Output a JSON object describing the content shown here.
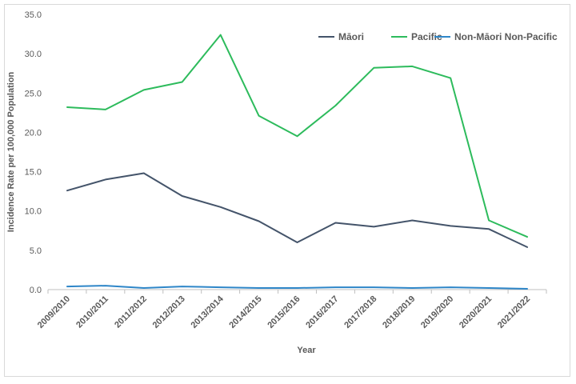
{
  "chart_data": {
    "type": "line",
    "title": "",
    "xlabel": "Year",
    "ylabel": "Incidence Rate per 100,000 Population",
    "ylim": [
      0,
      35
    ],
    "yticks": [
      "0.0",
      "5.0",
      "10.0",
      "15.0",
      "20.0",
      "25.0",
      "30.0",
      "35.0"
    ],
    "grid": false,
    "legend_position": "top-right",
    "categories": [
      "2009/2010",
      "2010/2011",
      "2011/2012",
      "2012/2013",
      "2013/2014",
      "2014/2015",
      "2015/2016",
      "2016/2017",
      "2017/2018",
      "2018/2019",
      "2019/2020",
      "2020/2021",
      "2021/2022"
    ],
    "series": [
      {
        "name": "Māori",
        "color": "#44546a",
        "values": [
          12.6,
          14.0,
          14.8,
          11.9,
          10.5,
          8.7,
          6.0,
          8.5,
          8.0,
          8.8,
          8.1,
          7.7,
          5.4
        ]
      },
      {
        "name": "Pacific",
        "color": "#2dbb5c",
        "values": [
          23.2,
          22.9,
          25.4,
          26.4,
          32.4,
          22.1,
          19.5,
          23.4,
          28.2,
          28.4,
          26.9,
          8.8,
          6.7
        ]
      },
      {
        "name": "Non-Māori Non-Pacific",
        "color": "#2e86c8",
        "values": [
          0.4,
          0.5,
          0.2,
          0.4,
          0.3,
          0.2,
          0.2,
          0.3,
          0.3,
          0.2,
          0.3,
          0.2,
          0.1
        ]
      }
    ]
  }
}
